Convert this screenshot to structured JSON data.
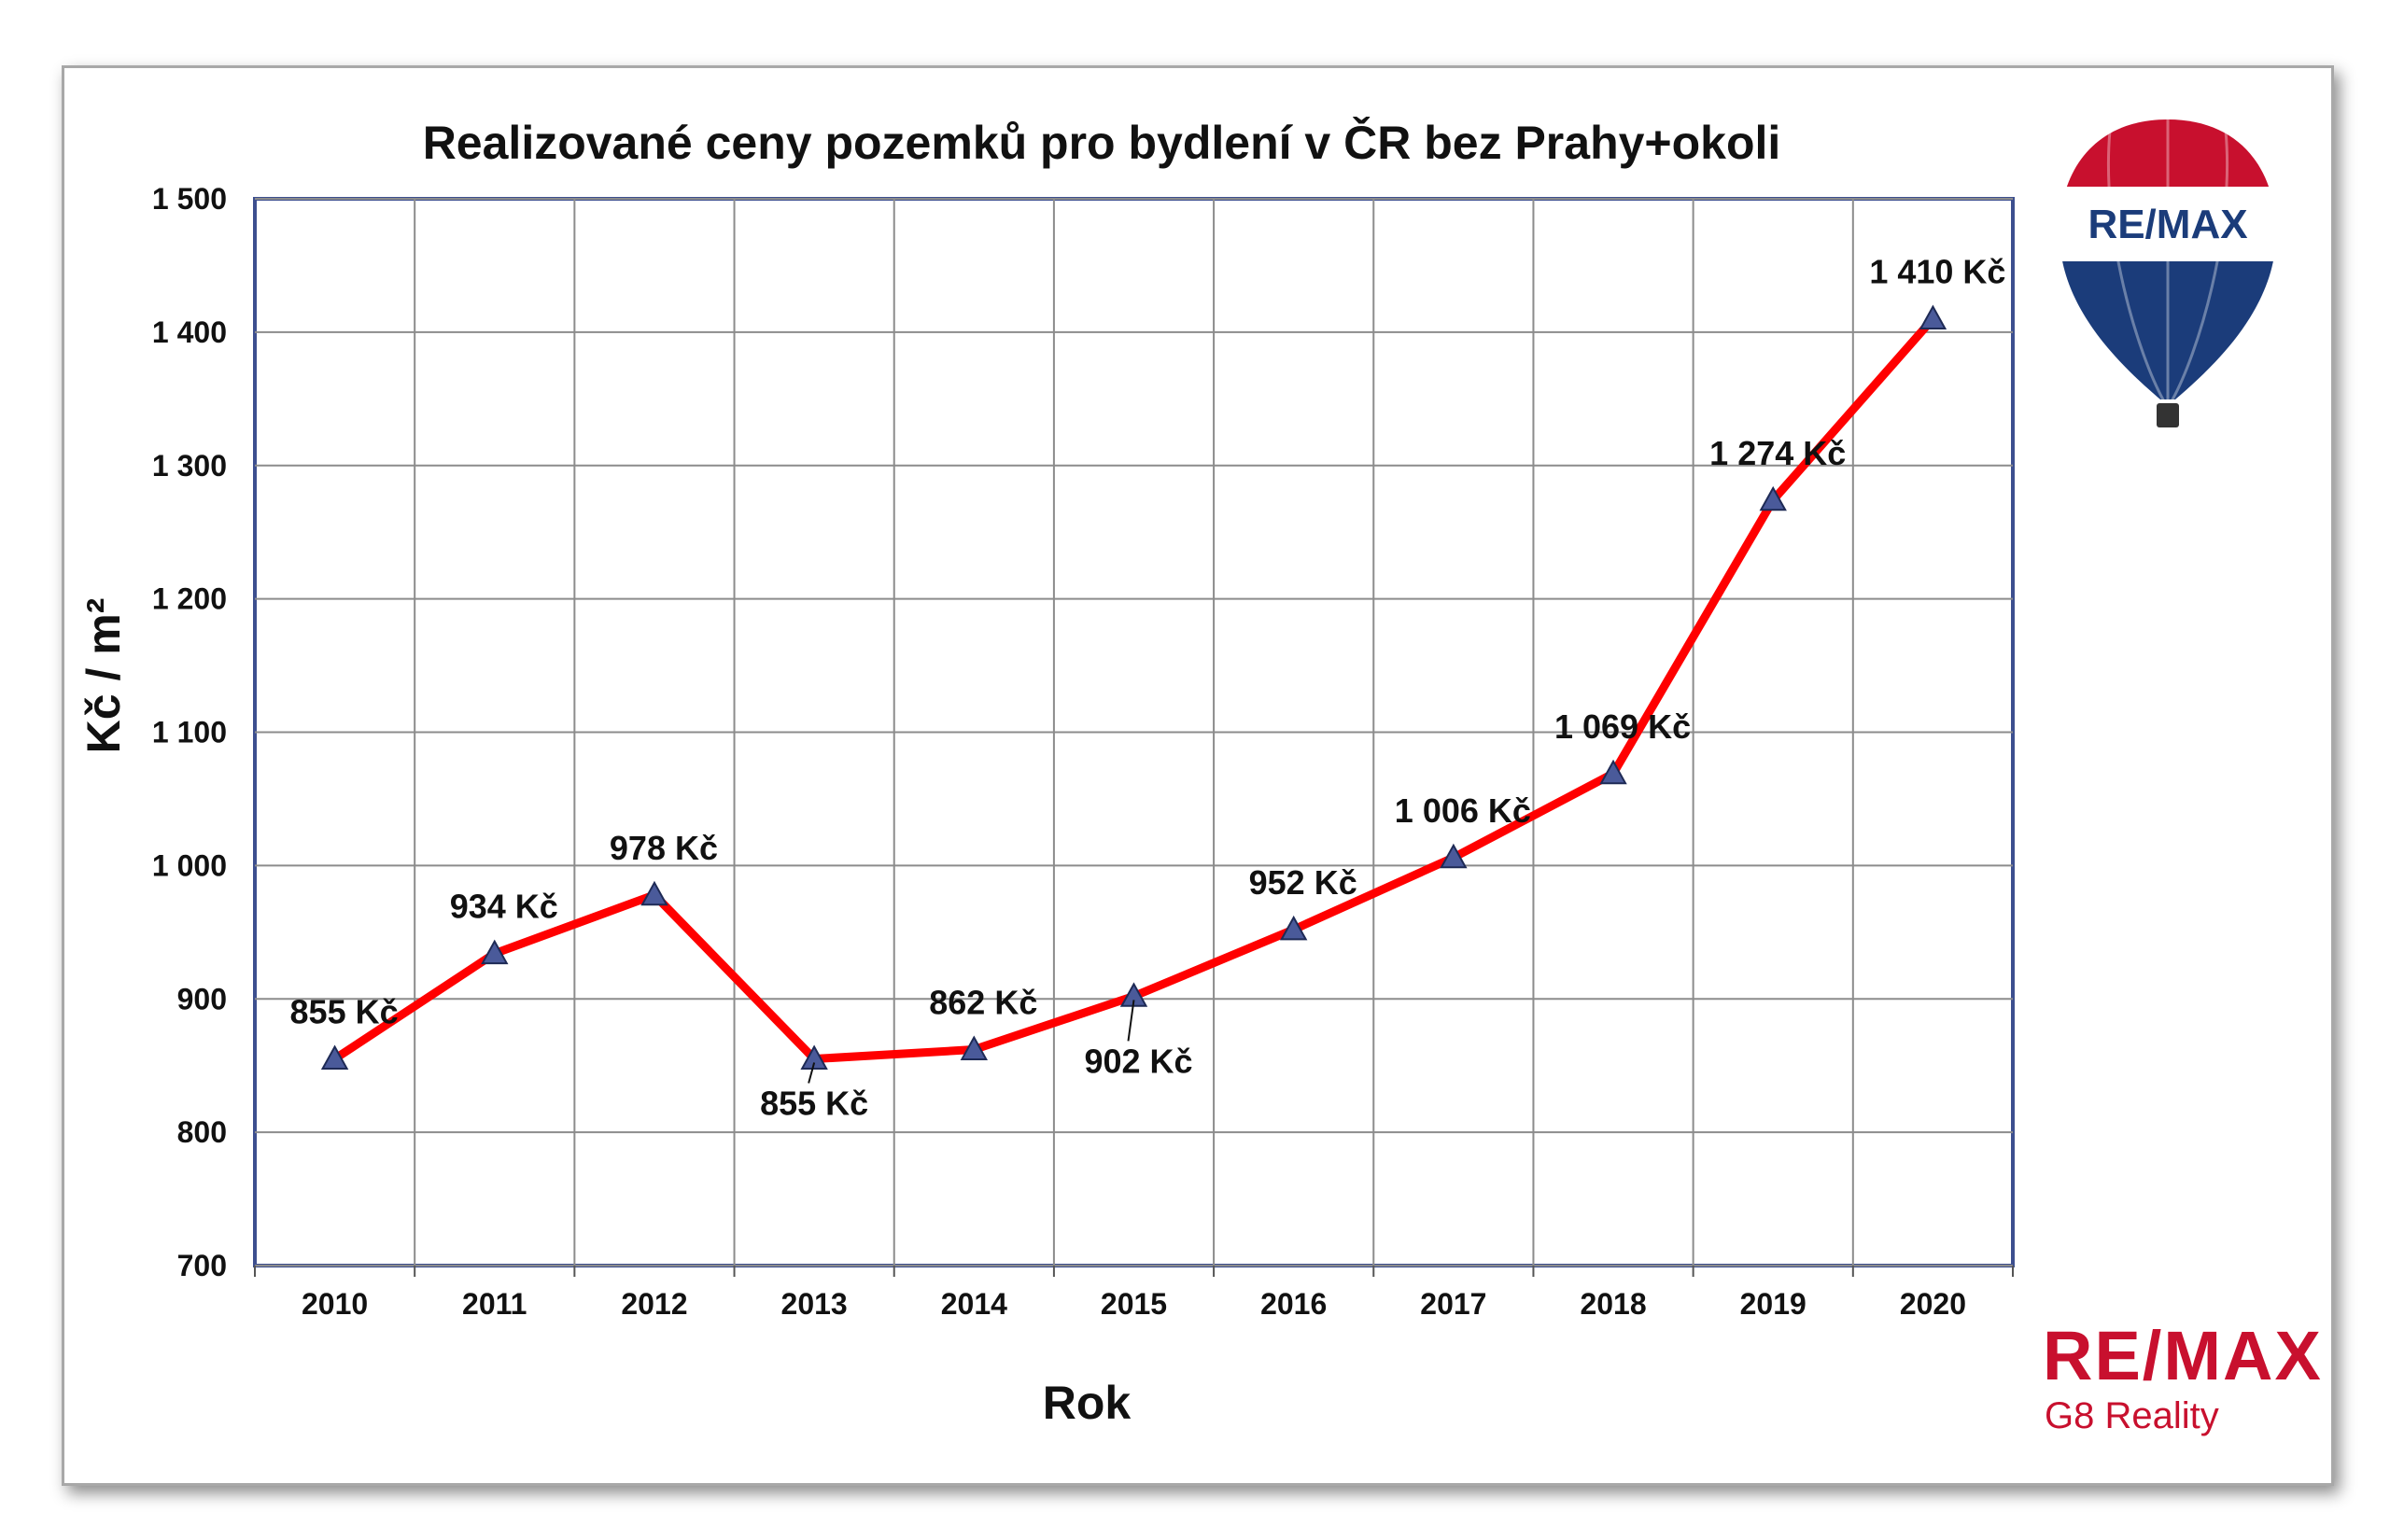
{
  "chart_data": {
    "type": "line",
    "title": "Realizované ceny pozemků pro bydlení v ČR bez Prahy+okoli",
    "xlabel": "Rok",
    "ylabel": "Kč / m²",
    "categories": [
      "2010",
      "2011",
      "2012",
      "2013",
      "2014",
      "2015",
      "2016",
      "2017",
      "2018",
      "2019",
      "2020"
    ],
    "values": [
      855,
      934,
      978,
      855,
      862,
      902,
      952,
      1006,
      1069,
      1274,
      1410
    ],
    "data_labels": [
      "855 Kč",
      "934 Kč",
      "978 Kč",
      "855 Kč",
      "862 Kč",
      "902 Kč",
      "952 Kč",
      "1 006 Kč",
      "1 069 Kč",
      "1 274 Kč",
      "1 410 Kč"
    ],
    "ylim": [
      700,
      1500
    ],
    "yticks": [
      700,
      800,
      900,
      1000,
      1100,
      1200,
      1300,
      1400,
      1500
    ],
    "ytick_labels": [
      "700",
      "800",
      "900",
      "1 000",
      "1 100",
      "1 200",
      "1 300",
      "1 400",
      "1 500"
    ],
    "grid": true,
    "line_color": "#ff0000",
    "marker_color": "#4a5a9a"
  },
  "branding": {
    "balloon_text": "RE/MAX",
    "logo_main": "RE/MAX",
    "logo_sub": "G8 Reality",
    "brand_red": "#c8102e",
    "brand_blue": "#1b3c7a"
  }
}
